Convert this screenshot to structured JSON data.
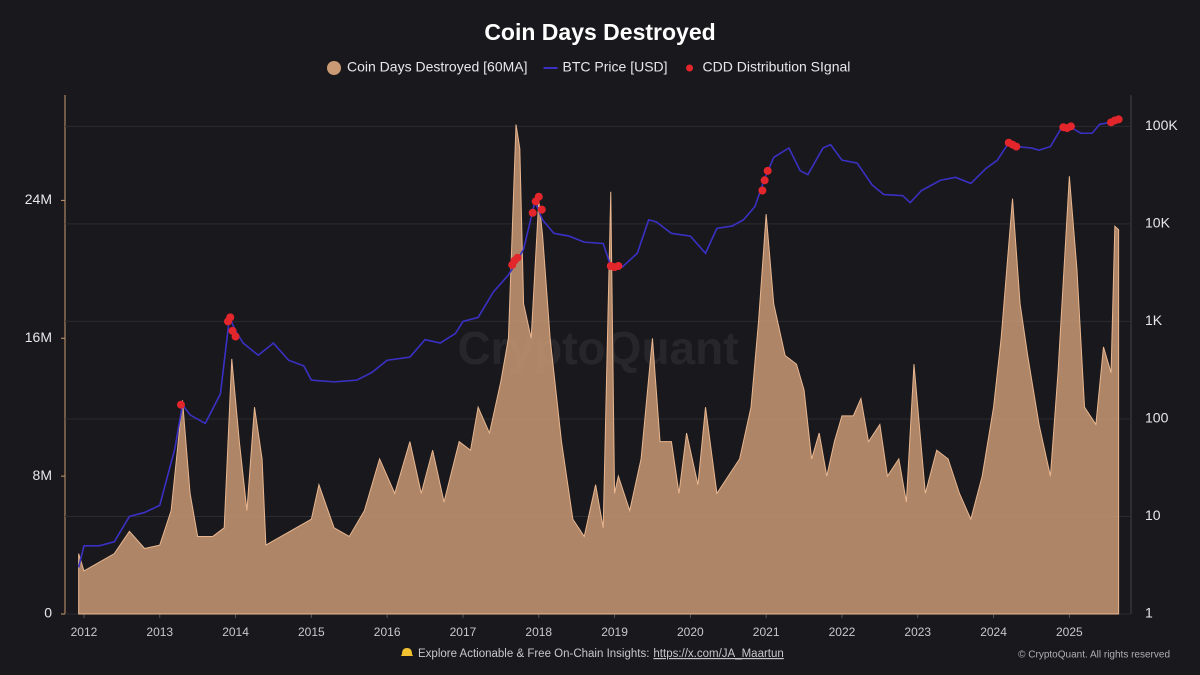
{
  "chart_data": {
    "type": "combo",
    "title": "Coin Days Destroyed",
    "watermark": "CryptoQuant",
    "footer": {
      "text": "Explore Actionable & Free On-Chain Insights:",
      "link": "https://x.com/JA_Maartun",
      "copyright": "© CryptoQuant. All rights reserved"
    },
    "xlim": [
      2011.75,
      2025.8
    ],
    "xticks": [
      2012,
      2013,
      2014,
      2015,
      2016,
      2017,
      2018,
      2019,
      2020,
      2021,
      2022,
      2023,
      2024,
      2025
    ],
    "ylim": [
      0,
      30000000
    ],
    "yticks": [
      0,
      {
        "value": 8000000,
        "label": "8M"
      },
      {
        "value": 16000000,
        "label": "16M"
      },
      {
        "value": 24000000,
        "label": "24M"
      }
    ],
    "y2lim": [
      1,
      200000
    ],
    "y2scale": "log",
    "y2ticks": [
      1,
      10,
      100,
      {
        "value": 1000,
        "label": "1K"
      },
      {
        "value": 10000,
        "label": "10K"
      },
      {
        "value": 100000,
        "label": "100K"
      }
    ],
    "grid": true,
    "series": [
      {
        "name": "Coin Days Destroyed [60MA]",
        "type": "area",
        "color": "#c99a74",
        "x": [
          2011.93,
          2012.0,
          2012.2,
          2012.4,
          2012.6,
          2012.8,
          2013.0,
          2013.15,
          2013.3,
          2013.4,
          2013.5,
          2013.7,
          2013.85,
          2013.95,
          2014.05,
          2014.15,
          2014.25,
          2014.35,
          2014.4,
          2014.6,
          2014.8,
          2015.0,
          2015.1,
          2015.3,
          2015.5,
          2015.7,
          2015.9,
          2016.1,
          2016.3,
          2016.45,
          2016.6,
          2016.75,
          2016.95,
          2017.1,
          2017.2,
          2017.35,
          2017.5,
          2017.6,
          2017.7,
          2017.75,
          2017.8,
          2017.9,
          2018.0,
          2018.05,
          2018.15,
          2018.3,
          2018.45,
          2018.6,
          2018.75,
          2018.85,
          2018.95,
          2019.0,
          2019.05,
          2019.2,
          2019.35,
          2019.5,
          2019.6,
          2019.75,
          2019.85,
          2019.95,
          2020.1,
          2020.2,
          2020.35,
          2020.5,
          2020.65,
          2020.8,
          2020.9,
          2021.0,
          2021.1,
          2021.25,
          2021.4,
          2021.5,
          2021.6,
          2021.7,
          2021.8,
          2021.9,
          2022.0,
          2022.15,
          2022.25,
          2022.35,
          2022.5,
          2022.6,
          2022.75,
          2022.85,
          2022.95,
          2023.1,
          2023.25,
          2023.4,
          2023.55,
          2023.7,
          2023.85,
          2024.0,
          2024.1,
          2024.25,
          2024.35,
          2024.45,
          2024.6,
          2024.75,
          2024.85,
          2025.0,
          2025.1,
          2025.2,
          2025.35,
          2025.45,
          2025.55,
          2025.6,
          2025.65
        ],
        "values": [
          3500000,
          2500000,
          3000000,
          3500000,
          4800000,
          3800000,
          4000000,
          6000000,
          12400000,
          7000000,
          4500000,
          4500000,
          5000000,
          14800000,
          10000000,
          6000000,
          12000000,
          9000000,
          4000000,
          4500000,
          5000000,
          5500000,
          7500000,
          5000000,
          4500000,
          6000000,
          9000000,
          7000000,
          10000000,
          7000000,
          9500000,
          6500000,
          10000000,
          9500000,
          12000000,
          10500000,
          13500000,
          16000000,
          28400000,
          27000000,
          18000000,
          16000000,
          24000000,
          22000000,
          16000000,
          10000000,
          5500000,
          4500000,
          7500000,
          5000000,
          24500000,
          7000000,
          8000000,
          6000000,
          9000000,
          16000000,
          10000000,
          10000000,
          7000000,
          10500000,
          7500000,
          12000000,
          7000000,
          8000000,
          9000000,
          12000000,
          17000000,
          23200000,
          18000000,
          15000000,
          14500000,
          13000000,
          9000000,
          10500000,
          8000000,
          10000000,
          11500000,
          11500000,
          12500000,
          10000000,
          11000000,
          8000000,
          9000000,
          6500000,
          14500000,
          7000000,
          9500000,
          9000000,
          7000000,
          5500000,
          8000000,
          12000000,
          16000000,
          24100000,
          18000000,
          15000000,
          11000000,
          8000000,
          14000000,
          25400000,
          20000000,
          12000000,
          11000000,
          15500000,
          14000000,
          22500000,
          22300000
        ]
      },
      {
        "name": "BTC Price [USD]",
        "type": "line",
        "axis": "y2",
        "color": "#3b30c4",
        "x": [
          2011.93,
          2012.0,
          2012.2,
          2012.4,
          2012.6,
          2012.8,
          2013.0,
          2013.2,
          2013.3,
          2013.4,
          2013.6,
          2013.8,
          2013.92,
          2014.0,
          2014.1,
          2014.3,
          2014.5,
          2014.7,
          2014.9,
          2015.0,
          2015.3,
          2015.6,
          2015.8,
          2016.0,
          2016.3,
          2016.5,
          2016.7,
          2016.9,
          2017.0,
          2017.2,
          2017.4,
          2017.6,
          2017.7,
          2017.8,
          2017.95,
          2018.05,
          2018.2,
          2018.4,
          2018.6,
          2018.85,
          2018.95,
          2019.1,
          2019.3,
          2019.45,
          2019.55,
          2019.75,
          2020.0,
          2020.2,
          2020.35,
          2020.55,
          2020.7,
          2020.85,
          2020.98,
          2021.1,
          2021.3,
          2021.45,
          2021.55,
          2021.75,
          2021.85,
          2022.0,
          2022.2,
          2022.4,
          2022.55,
          2022.8,
          2022.9,
          2023.05,
          2023.3,
          2023.5,
          2023.7,
          2023.9,
          2024.05,
          2024.2,
          2024.3,
          2024.5,
          2024.6,
          2024.75,
          2024.9,
          2025.0,
          2025.15,
          2025.3,
          2025.4,
          2025.55,
          2025.65
        ],
        "values": [
          3,
          5,
          5,
          5.5,
          10,
          11,
          13,
          50,
          140,
          110,
          90,
          180,
          1100,
          800,
          600,
          450,
          600,
          400,
          350,
          250,
          240,
          250,
          300,
          400,
          430,
          650,
          600,
          750,
          1000,
          1100,
          2000,
          3000,
          4000,
          5500,
          17000,
          11000,
          8000,
          7500,
          6500,
          6300,
          3700,
          3600,
          5000,
          11000,
          10500,
          8000,
          7500,
          5000,
          9000,
          9500,
          11000,
          15000,
          29000,
          48000,
          60000,
          35000,
          32000,
          60000,
          65000,
          45000,
          42000,
          25000,
          20000,
          19500,
          16500,
          22000,
          28000,
          30000,
          26000,
          37000,
          45000,
          68000,
          62000,
          60000,
          57000,
          62000,
          98000,
          100000,
          85000,
          85000,
          105000,
          110000,
          118000
        ]
      },
      {
        "name": "CDD Distribution SIgnal",
        "type": "scatter",
        "axis": "y2",
        "color": "#e3262b",
        "x": [
          2013.28,
          2013.9,
          2013.93,
          2013.96,
          2014.0,
          2017.65,
          2017.68,
          2017.72,
          2017.92,
          2017.96,
          2018.0,
          2018.04,
          2018.95,
          2019.0,
          2019.05,
          2020.95,
          2020.98,
          2021.02,
          2024.2,
          2024.25,
          2024.3,
          2024.92,
          2024.97,
          2025.02,
          2025.55,
          2025.6,
          2025.65
        ],
        "values": [
          140,
          1000,
          1100,
          800,
          700,
          3800,
          4200,
          4500,
          13000,
          17000,
          19000,
          14000,
          3700,
          3600,
          3700,
          22000,
          28000,
          35000,
          68000,
          65000,
          62000,
          98000,
          96000,
          100000,
          110000,
          115000,
          118000
        ]
      }
    ]
  }
}
